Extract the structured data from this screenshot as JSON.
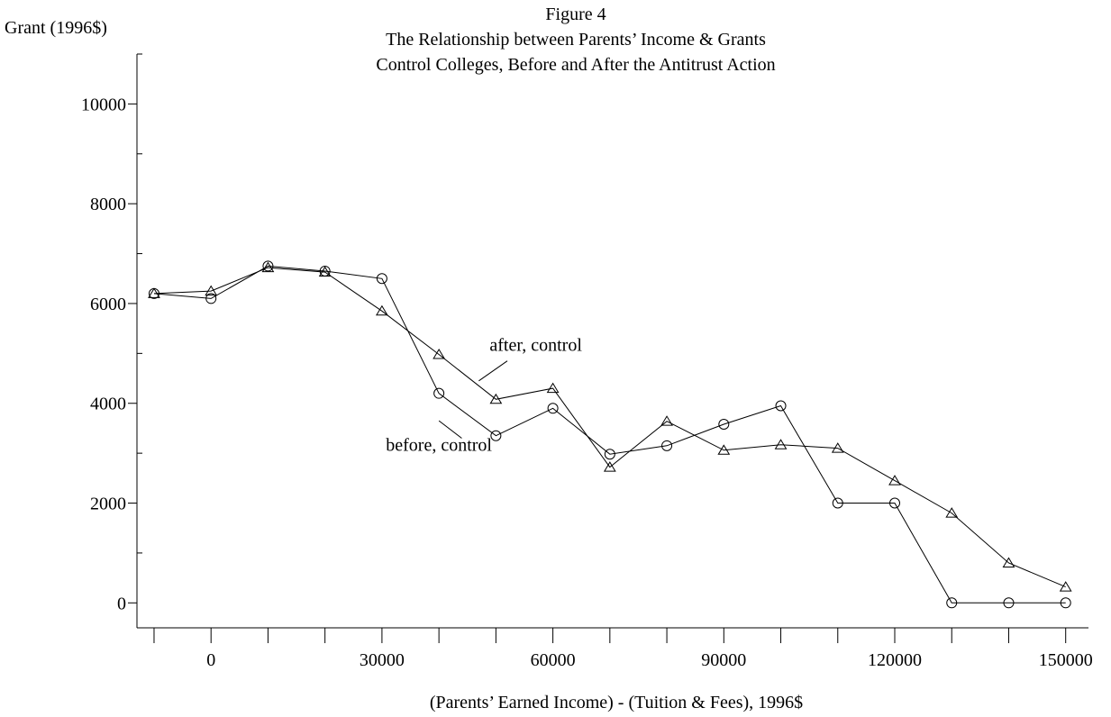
{
  "chart_data": {
    "type": "line",
    "title_lines": [
      "Figure 4",
      "The Relationship between Parents’ Income & Grants",
      "Control Colleges, Before and After the Antitrust Action"
    ],
    "ylabel": "Grant (1996$)",
    "xlabel": "(Parents’ Earned Income) - (Tuition & Fees), 1996$",
    "xlim": [
      -13000,
      154000
    ],
    "ylim": [
      -500,
      11000
    ],
    "x_major_ticks": [
      0,
      30000,
      60000,
      90000,
      120000,
      150000
    ],
    "x_minor_ticks": [
      -10000,
      10000,
      20000,
      40000,
      50000,
      70000,
      80000,
      100000,
      110000,
      130000,
      140000
    ],
    "y_major_ticks": [
      0,
      2000,
      4000,
      6000,
      8000,
      10000
    ],
    "y_minor_ticks": [
      1000,
      3000,
      5000,
      7000,
      9000,
      11000
    ],
    "x": [
      -10000,
      0,
      10000,
      20000,
      30000,
      40000,
      50000,
      60000,
      70000,
      80000,
      90000,
      100000,
      110000,
      120000,
      130000,
      140000,
      150000
    ],
    "series": [
      {
        "name": "before, control",
        "marker": "circle",
        "values": [
          6200,
          6100,
          6750,
          6650,
          6500,
          4200,
          3350,
          3900,
          2980,
          3150,
          3580,
          3950,
          2000,
          2000,
          0,
          0,
          0
        ]
      },
      {
        "name": "after, control",
        "marker": "triangle",
        "values": [
          6200,
          6250,
          6720,
          6630,
          5850,
          4980,
          4080,
          4300,
          2720,
          3640,
          3060,
          3170,
          3100,
          2450,
          1800,
          800,
          320
        ]
      }
    ],
    "annotations": [
      {
        "text": "after, control",
        "series": "after, control",
        "text_at": [
          57000,
          5050
        ],
        "pointer_from": [
          52000,
          4850
        ],
        "pointer_to": [
          47000,
          4450
        ]
      },
      {
        "text": "before, control",
        "series": "before, control",
        "text_at": [
          40000,
          3050
        ],
        "pointer_from": [
          44000,
          3300
        ],
        "pointer_to": [
          40000,
          3650
        ]
      }
    ]
  }
}
